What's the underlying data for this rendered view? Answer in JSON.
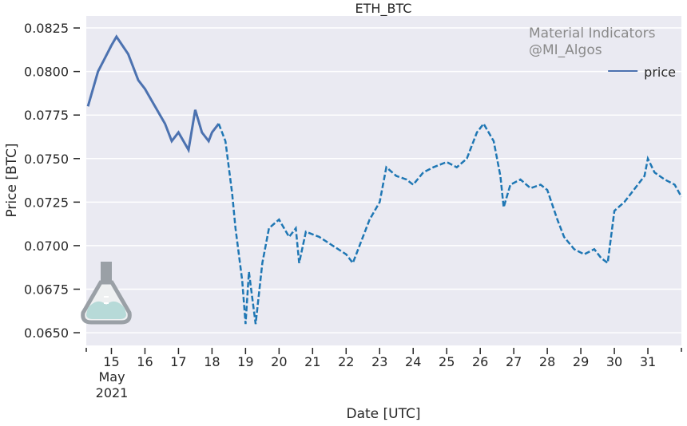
{
  "chart_data": {
    "type": "line",
    "title": "ETH_BTC",
    "xlabel": "Date [UTC]",
    "ylabel": "Price [BTC]",
    "xlim": [
      14.25,
      32.0
    ],
    "ylim": [
      0.06427,
      0.08319
    ],
    "x_ticks": [
      15,
      16,
      17,
      18,
      19,
      20,
      21,
      22,
      23,
      24,
      25,
      26,
      27,
      28,
      29,
      30,
      31
    ],
    "x_tick_labels": [
      "15",
      "16",
      "17",
      "18",
      "19",
      "20",
      "21",
      "22",
      "23",
      "24",
      "25",
      "26",
      "27",
      "28",
      "29",
      "30",
      "31"
    ],
    "x_sublabel": [
      "May",
      "2021"
    ],
    "y_ticks": [
      0.065,
      0.0675,
      0.07,
      0.0725,
      0.075,
      0.0775,
      0.08,
      0.0825
    ],
    "y_tick_labels": [
      "0.0650",
      "0.0675",
      "0.0700",
      "0.0725",
      "0.0750",
      "0.0775",
      "0.0800",
      "0.0825"
    ],
    "grid": true,
    "legend": {
      "position": "top-right",
      "entries": [
        "price"
      ]
    },
    "watermark": [
      "Material Indicators",
      "@MI_Algos"
    ],
    "series": [
      {
        "name": "price",
        "color": "#1f77b4",
        "early_color": "#4c72b0",
        "x": [
          14.3,
          14.6,
          15.0,
          15.15,
          15.5,
          15.8,
          16.0,
          16.3,
          16.6,
          16.8,
          17.0,
          17.3,
          17.5,
          17.7,
          17.9,
          18.0,
          18.2,
          18.4,
          18.6,
          18.7,
          18.9,
          19.0,
          19.1,
          19.3,
          19.5,
          19.7,
          20.0,
          20.3,
          20.5,
          20.6,
          20.8,
          21.2,
          21.6,
          22.0,
          22.2,
          22.4,
          22.7,
          23.0,
          23.2,
          23.5,
          23.8,
          24.0,
          24.3,
          24.6,
          25.0,
          25.3,
          25.6,
          25.9,
          26.1,
          26.4,
          26.6,
          26.7,
          26.9,
          27.2,
          27.5,
          27.8,
          28.0,
          28.3,
          28.5,
          28.8,
          29.1,
          29.4,
          29.6,
          29.8,
          30.0,
          30.3,
          30.7,
          30.9,
          31.0,
          31.2,
          31.5,
          31.8,
          32.0
        ],
        "y": [
          0.078,
          0.08,
          0.0815,
          0.082,
          0.081,
          0.0795,
          0.079,
          0.078,
          0.077,
          0.076,
          0.0765,
          0.0755,
          0.0778,
          0.0765,
          0.076,
          0.0765,
          0.077,
          0.076,
          0.073,
          0.071,
          0.068,
          0.0655,
          0.0685,
          0.0655,
          0.069,
          0.071,
          0.0715,
          0.0705,
          0.071,
          0.069,
          0.0708,
          0.0705,
          0.07,
          0.0695,
          0.069,
          0.07,
          0.0715,
          0.0725,
          0.0745,
          0.074,
          0.0738,
          0.0735,
          0.0742,
          0.0745,
          0.0748,
          0.0745,
          0.075,
          0.0765,
          0.077,
          0.076,
          0.074,
          0.0722,
          0.0735,
          0.0738,
          0.0733,
          0.0735,
          0.0732,
          0.0715,
          0.0705,
          0.0698,
          0.0695,
          0.0698,
          0.0693,
          0.069,
          0.072,
          0.0725,
          0.0735,
          0.074,
          0.075,
          0.0742,
          0.0738,
          0.0735,
          0.0728
        ]
      }
    ]
  }
}
